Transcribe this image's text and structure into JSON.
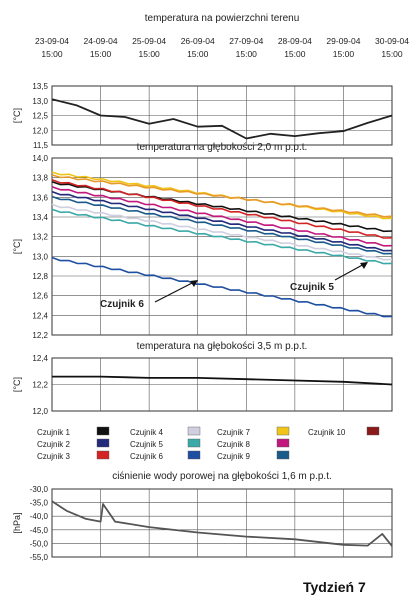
{
  "header": {
    "dates": [
      {
        "date": "23-09-04",
        "time": "15:00"
      },
      {
        "date": "24-09-04",
        "time": "15:00"
      },
      {
        "date": "25-09-04",
        "time": "15:00"
      },
      {
        "date": "26-09-04",
        "time": "15:00"
      },
      {
        "date": "27-09-04",
        "time": "15:00"
      },
      {
        "date": "28-09-04",
        "time": "15:00"
      },
      {
        "date": "29-09-04",
        "time": "15:00"
      },
      {
        "date": "30-09-04",
        "time": "15:00"
      }
    ]
  },
  "footer": {
    "label": "Tydzień 7"
  },
  "legend": [
    {
      "name": "Czujnik 1",
      "color": "#111111"
    },
    {
      "name": "Czujnik 2",
      "color": "#232a7a"
    },
    {
      "name": "Czujnik 3",
      "color": "#d42323"
    },
    {
      "name": "Czujnik 4",
      "color": "#cfcfe0"
    },
    {
      "name": "Czujnik 5",
      "color": "#3aa9a7"
    },
    {
      "name": "Czujnik 6",
      "color": "#1f4fa0"
    },
    {
      "name": "Czujnik 7",
      "color": "#f0c419"
    },
    {
      "name": "Czujnik 8",
      "color": "#c2187d"
    },
    {
      "name": "Czujnik 9",
      "color": "#1a5a8a"
    },
    {
      "name": "Czujnik 10",
      "color": "#8b1a1a"
    }
  ],
  "chart_data": [
    {
      "type": "line",
      "title": "temperatura na powierzchni terenu",
      "ylabel": "[°C]",
      "ylim": [
        11.5,
        13.5
      ],
      "yticks": [
        "13,5",
        "13,0",
        "12,5",
        "12,0",
        "11,5"
      ],
      "x": [
        0,
        0.5,
        1,
        1.5,
        2,
        2.5,
        3,
        3.5,
        4,
        4.5,
        5,
        5.5,
        6,
        6.5,
        7
      ],
      "series": [
        {
          "values": [
            13.05,
            12.85,
            12.5,
            12.45,
            12.22,
            12.38,
            12.12,
            12.15,
            11.72,
            11.88,
            11.8,
            11.9,
            11.97,
            12.25,
            12.5
          ],
          "color": "#222222"
        }
      ],
      "grid": true
    },
    {
      "type": "line",
      "title": "temperatura na głębokości 2,0 m p.p.t.",
      "ylabel": "[°C]",
      "ylim": [
        12.2,
        14.0
      ],
      "yticks": [
        "14,0",
        "13,8",
        "13,6",
        "13,4",
        "13,2",
        "13,0",
        "12,8",
        "12,6",
        "12,4",
        "12,2"
      ],
      "x": [
        0,
        7
      ],
      "series": [
        {
          "values": [
            13.75,
            13.25
          ],
          "color": "#111111"
        },
        {
          "values": [
            13.65,
            13.05
          ],
          "color": "#232a7a"
        },
        {
          "values": [
            13.77,
            13.18
          ],
          "color": "#d42323"
        },
        {
          "values": [
            13.52,
            12.96
          ],
          "color": "#cfcfe0"
        },
        {
          "values": [
            13.47,
            12.92
          ],
          "color": "#3aa9a7"
        },
        {
          "values": [
            12.98,
            12.38
          ],
          "color": "#1f4fa0"
        },
        {
          "values": [
            13.85,
            13.38
          ],
          "color": "#f0c419"
        },
        {
          "values": [
            13.7,
            13.1
          ],
          "color": "#c2187d"
        },
        {
          "values": [
            13.6,
            13.02
          ],
          "color": "#1a5a8a"
        },
        {
          "values": [
            13.82,
            13.4
          ],
          "color": "#e89a2a"
        }
      ],
      "annotations": [
        {
          "text": "Czujnik 6"
        },
        {
          "text": "Czujnik 5"
        }
      ],
      "grid": true
    },
    {
      "type": "line",
      "title": "temperatura na głębokości 3,5 m p.p.t.",
      "ylabel": "[°C]",
      "ylim": [
        12.0,
        12.4
      ],
      "yticks": [
        "12,4",
        "12,2",
        "12,0"
      ],
      "x": [
        0,
        1,
        2,
        3,
        4,
        5,
        6,
        7
      ],
      "series": [
        {
          "values": [
            12.26,
            12.26,
            12.25,
            12.25,
            12.24,
            12.23,
            12.22,
            12.2
          ],
          "color": "#111111"
        }
      ],
      "grid": true
    },
    {
      "type": "line",
      "title": "ciśnienie wody porowej na głębokości 1,6 m p.p.t.",
      "ylabel": "[hPa]",
      "ylim": [
        -55.0,
        -30.0
      ],
      "yticks": [
        "-30,0",
        "-35,0",
        "-40,0",
        "-45,0",
        "-50,0",
        "-55,0"
      ],
      "x": [
        0,
        0.3,
        0.7,
        1.0,
        1.05,
        1.3,
        2,
        3,
        4,
        5,
        6,
        6.5,
        6.8,
        7
      ],
      "series": [
        {
          "values": [
            -34.5,
            -38,
            -41,
            -42,
            -35.5,
            -42,
            -44,
            -46,
            -47.5,
            -48.5,
            -50.5,
            -50.8,
            -46.5,
            -51
          ],
          "color": "#555555"
        }
      ],
      "grid": true
    }
  ]
}
